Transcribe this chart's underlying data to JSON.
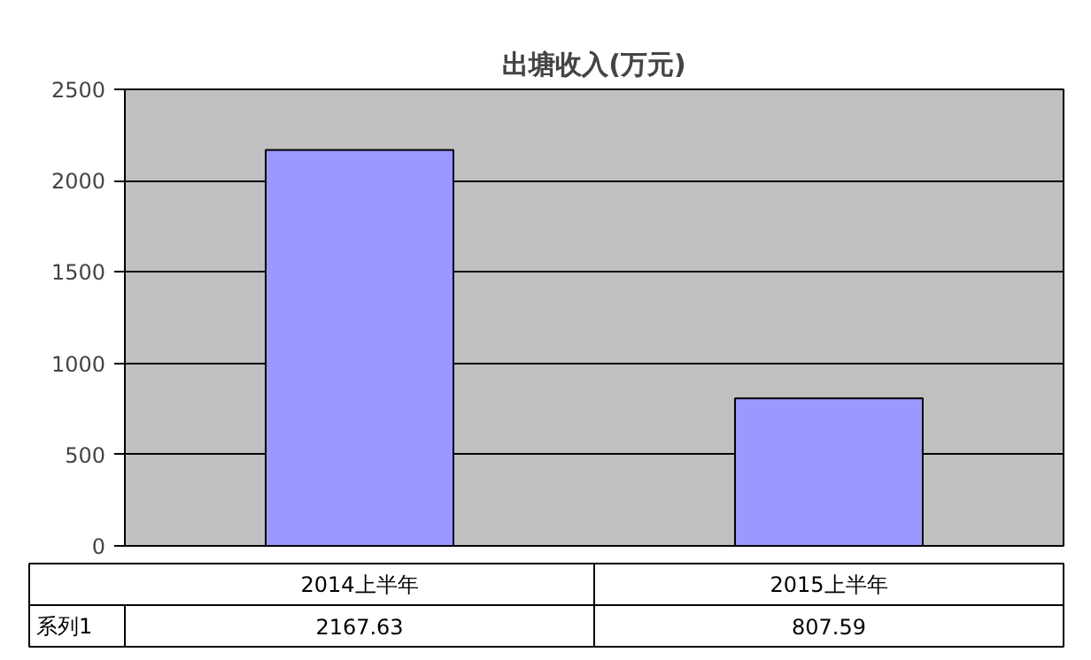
{
  "chart_data": {
    "type": "bar",
    "title": "出塘收入(万元)",
    "categories": [
      "2014上半年",
      "2015上半年"
    ],
    "series": [
      {
        "name": "系列1",
        "color": "#9999ff",
        "values": [
          2167.63,
          807.59
        ]
      }
    ],
    "ylim": [
      0,
      2500
    ],
    "yticks": [
      0,
      500,
      1000,
      1500,
      2000,
      2500
    ],
    "grid": "y",
    "legend": "bottom",
    "data_labels": true
  }
}
